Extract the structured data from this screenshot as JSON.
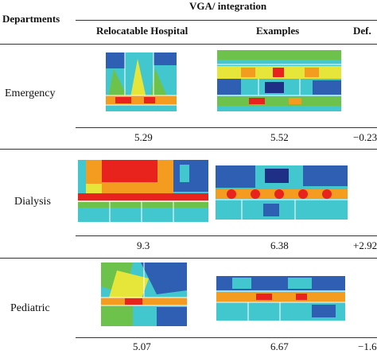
{
  "header": {
    "departments": "Departments",
    "group_title": "VGA/ integration",
    "col_relocatable": "Relocatable Hospital",
    "col_examples": "Examples",
    "col_def": "Def."
  },
  "rows": [
    {
      "department": "Emergency",
      "relocatable": "5.29",
      "examples": "5.52",
      "def": "−0.23"
    },
    {
      "department": "Dialysis",
      "relocatable": "9.3",
      "examples": "6.38",
      "def": "+2.92"
    },
    {
      "department": "Pediatric",
      "relocatable": "5.07",
      "examples": "6.67",
      "def": "−1.6"
    }
  ],
  "colors": {
    "vga_red": "#e8231e",
    "vga_orange": "#f39c1f",
    "vga_yellow": "#e6e63a",
    "vga_green": "#6cc24a",
    "vga_cyan": "#43c7cf",
    "vga_blue": "#2f5fb3",
    "vga_navy": "#1f2f86"
  }
}
